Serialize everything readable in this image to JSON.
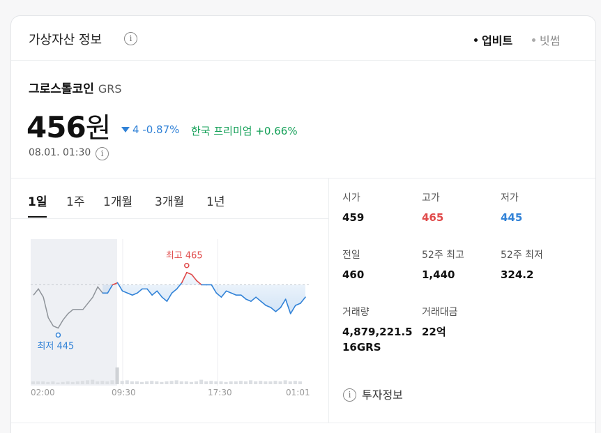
{
  "header": {
    "title": "가상자산 정보",
    "info_glyph": "i",
    "exchanges": [
      "업비트",
      "빗썸"
    ],
    "selected_exchange": "업비트"
  },
  "coin": {
    "name": "그로스톨코인",
    "symbol": "GRS",
    "price": "456",
    "unit": "원",
    "change_value": "4",
    "change_percent": "-0.87%",
    "change_direction": "down",
    "premium_label": "한국 프리미엄",
    "premium_value": "+0.66%",
    "timestamp": "08.01. 01:30"
  },
  "tabs": [
    "1일",
    "1주",
    "1개월",
    "3개월",
    "1년"
  ],
  "active_tab": "1일",
  "chart_data": {
    "type": "line",
    "x_ticks": [
      "02:00",
      "09:30",
      "17:30",
      "01:01"
    ],
    "high_label": "최고 465",
    "low_label": "최저 445",
    "high": 465,
    "low": 445,
    "prev_close": 460,
    "series": [
      {
        "values": [
          457.5,
          459,
          457,
          452,
          450,
          449.5,
          451.5,
          453,
          454,
          454,
          454,
          455.5,
          457,
          459.5,
          458,
          458,
          460,
          460.5,
          458.5,
          458,
          457.5,
          458,
          459,
          459,
          457.5,
          458.5,
          457,
          456,
          458,
          459,
          460.5,
          463,
          462.5,
          461,
          460,
          460,
          460,
          458,
          457,
          458.5,
          458,
          457.5,
          457.5,
          456.5,
          456,
          457,
          456,
          455,
          454.5,
          453.5,
          454.5,
          456.5,
          453,
          455,
          455.5,
          457
        ]
      }
    ],
    "volume": [
      1,
      1,
      1,
      0.8,
      1,
      0.6,
      0.8,
      1,
      0.8,
      1,
      1.2,
      1.4,
      1.6,
      1,
      1.2,
      1,
      1.4,
      6,
      1.2,
      1.4,
      1,
      1,
      0.8,
      1,
      1.2,
      1,
      0.8,
      1,
      1.2,
      1.4,
      1,
      1,
      0.8,
      1,
      1.6,
      1,
      1.2,
      1,
      1,
      0.8,
      1,
      1,
      1.2,
      1,
      1.4,
      1,
      1.2,
      1,
      1,
      1.2,
      1,
      1.4,
      1,
      1.2,
      1
    ]
  },
  "stats": [
    {
      "label": "시가",
      "value": "459",
      "color": ""
    },
    {
      "label": "고가",
      "value": "465",
      "color": "red"
    },
    {
      "label": "저가",
      "value": "445",
      "color": "blue"
    },
    {
      "label": "전일",
      "value": "460",
      "color": ""
    },
    {
      "label": "52주 최고",
      "value": "1,440",
      "color": ""
    },
    {
      "label": "52주 최저",
      "value": "324.2",
      "color": ""
    },
    {
      "label": "거래량",
      "value": "4,879,221.5\n16GRS",
      "color": ""
    },
    {
      "label": "거래대금",
      "value": "22억",
      "color": ""
    }
  ],
  "invest_link": "투자정보",
  "colors": {
    "up": "#e04a4a",
    "down": "#3182d7",
    "premium": "#15a058",
    "line_gray": "#8f949a"
  }
}
